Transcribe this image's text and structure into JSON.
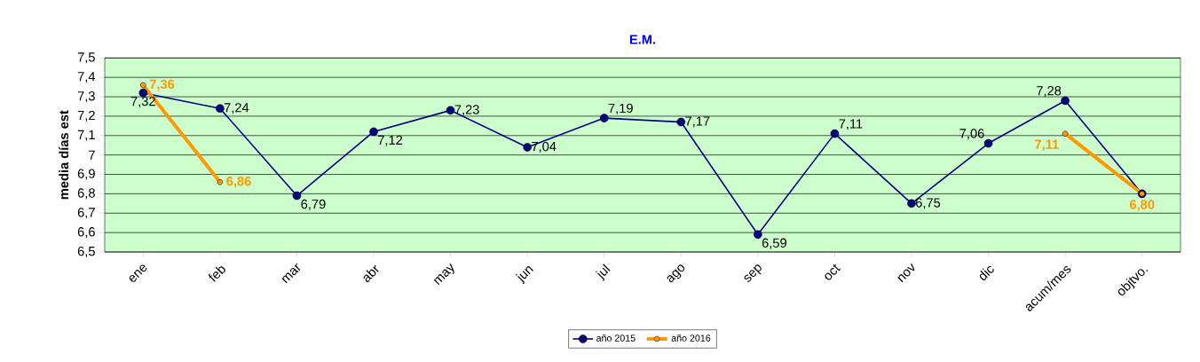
{
  "chart_data": {
    "type": "line",
    "title": "E.M.",
    "ylabel": "media días est",
    "categories": [
      "ene",
      "feb",
      "mar",
      "abr",
      "may",
      "jun",
      "jul",
      "ago",
      "sep",
      "oct",
      "nov",
      "dic",
      "acum/mes",
      "objtvo."
    ],
    "series": [
      {
        "name": "año 2015",
        "color": "#000080",
        "values": [
          7.32,
          7.24,
          6.79,
          7.12,
          7.23,
          7.04,
          7.19,
          7.17,
          6.59,
          7.11,
          6.75,
          7.06,
          7.28,
          6.8
        ],
        "value_labels": [
          "7,32",
          "7,24",
          "6,79",
          "7,12",
          "7,23",
          "7,04",
          "7,19",
          "7,17",
          "6,59",
          "7,11",
          "6,75",
          "7,06",
          "7,28",
          null
        ]
      },
      {
        "name": "año 2016",
        "color": "#ff9900",
        "values": [
          7.36,
          6.86,
          null,
          null,
          null,
          null,
          null,
          null,
          null,
          null,
          null,
          null,
          7.11,
          6.8
        ],
        "value_labels": [
          "7,36",
          "6,86",
          null,
          null,
          null,
          null,
          null,
          null,
          null,
          null,
          null,
          null,
          "7,11",
          "6,80"
        ]
      }
    ],
    "ylim": [
      6.5,
      7.5
    ],
    "yticks": [
      {
        "value": 6.5,
        "label": "6,5"
      },
      {
        "value": 6.6,
        "label": "6,6"
      },
      {
        "value": 6.7,
        "label": "6,7"
      },
      {
        "value": 6.8,
        "label": "6,8"
      },
      {
        "value": 6.9,
        "label": "6,9"
      },
      {
        "value": 7,
        "label": "7"
      },
      {
        "value": 7.1,
        "label": "7,1"
      },
      {
        "value": 7.2,
        "label": "7,2"
      },
      {
        "value": 7.3,
        "label": "7,3"
      },
      {
        "value": 7.4,
        "label": "7,4"
      },
      {
        "value": 7.5,
        "label": "7,5"
      }
    ],
    "grid": "y",
    "legend": "bottom",
    "marker": "circle",
    "line_style": "solid"
  }
}
